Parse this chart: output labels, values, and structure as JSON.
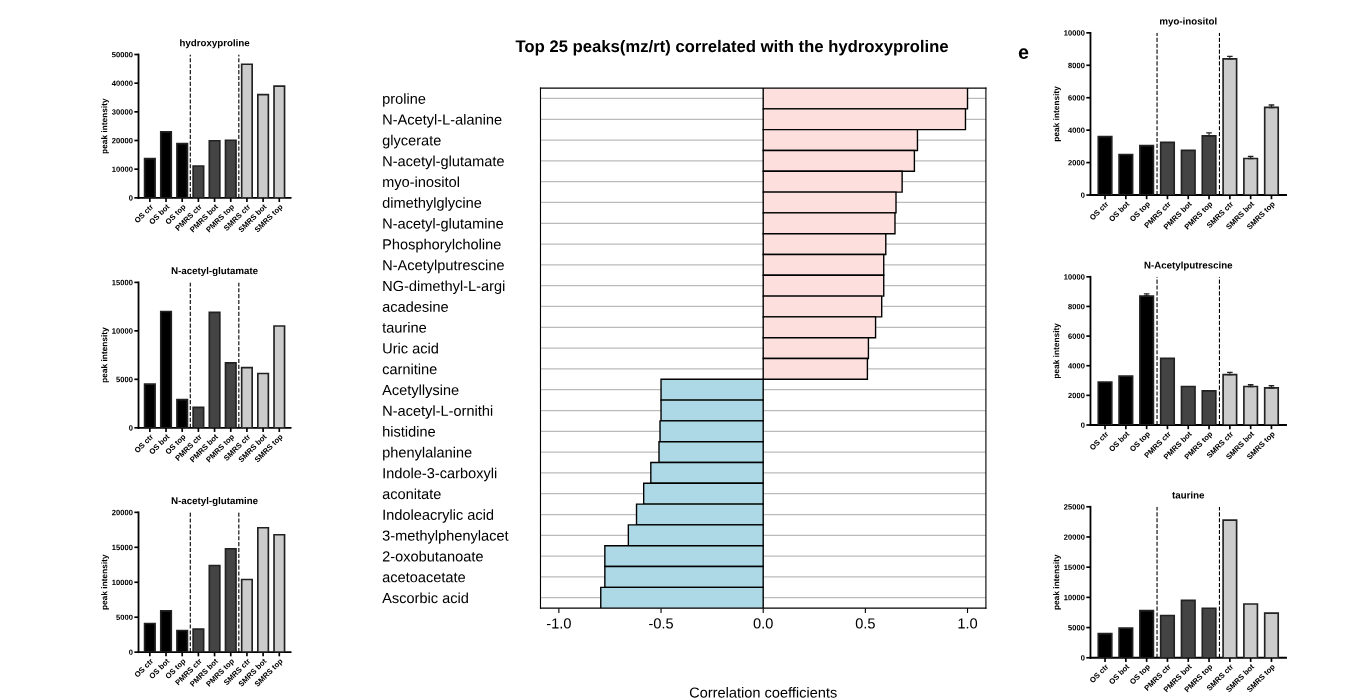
{
  "chart_data": [
    {
      "type": "bar",
      "title": "hydroxyproline",
      "ylabel": "peak intensity",
      "categories": [
        "OS ctr",
        "OS bot",
        "OS top",
        "PMRS ctr",
        "PMRS bot",
        "PMRS top",
        "SMRS ctr",
        "SMRS bot",
        "SMRS top"
      ],
      "values": [
        13700,
        23000,
        18900,
        11100,
        19900,
        20100,
        46600,
        36000,
        39000
      ],
      "colors": [
        "#000000",
        "#000000",
        "#000000",
        "#444444",
        "#444444",
        "#444444",
        "#cccccc",
        "#cccccc",
        "#cccccc"
      ],
      "ylim": [
        0,
        50000
      ],
      "yticks": [
        0,
        10000,
        20000,
        30000,
        40000,
        50000
      ]
    },
    {
      "type": "bar",
      "title": "N-acetyl-glutamate",
      "ylabel": "peak intensity",
      "categories": [
        "OS ctr",
        "OS bot",
        "OS top",
        "PMRS ctr",
        "PMRS bot",
        "PMRS top",
        "SMRS ctr",
        "SMRS bot",
        "SMRS top"
      ],
      "values": [
        4500,
        12000,
        2900,
        2100,
        11900,
        6700,
        6200,
        5600,
        10500
      ],
      "colors": [
        "#000000",
        "#000000",
        "#000000",
        "#444444",
        "#444444",
        "#444444",
        "#cccccc",
        "#cccccc",
        "#cccccc"
      ],
      "ylim": [
        0,
        15000
      ],
      "yticks": [
        0,
        5000,
        10000,
        15000
      ]
    },
    {
      "type": "bar",
      "title": "N-acetyl-glutamine",
      "ylabel": "peak intensity",
      "categories": [
        "OS ctr",
        "OS bot",
        "OS top",
        "PMRS ctr",
        "PMRS bot",
        "PMRS top",
        "SMRS ctr",
        "SMRS bot",
        "SMRS top"
      ],
      "values": [
        4100,
        5900,
        3100,
        3300,
        12400,
        14800,
        10400,
        17800,
        16800
      ],
      "colors": [
        "#000000",
        "#000000",
        "#000000",
        "#444444",
        "#444444",
        "#444444",
        "#cccccc",
        "#cccccc",
        "#cccccc"
      ],
      "ylim": [
        0,
        20000
      ],
      "yticks": [
        0,
        5000,
        10000,
        15000,
        20000
      ]
    },
    {
      "type": "bar",
      "orientation": "horizontal",
      "title": "Top 25 peaks(mz/rt) correlated with the hydroxyproline",
      "xlabel": "Correlation coefficients",
      "categories": [
        "proline",
        "N-Acetyl-L-alanine",
        "glycerate",
        "N-acetyl-glutamate",
        "myo-inositol",
        "dimethylglycine",
        "N-acetyl-glutamine",
        "Phosphorylcholine",
        "N-Acetylputrescine",
        "NG-dimethyl-L-argi",
        "acadesine",
        "taurine",
        "Uric acid",
        "carnitine",
        "Acetyllysine",
        "N-acetyl-L-ornithi",
        "histidine",
        "phenylalanine",
        "Indole-3-carboxyli",
        "aconitate",
        "Indoleacrylic acid",
        "3-methylphenylacet",
        "2-oxobutanoate",
        "acetoacetate",
        "Ascorbic acid"
      ],
      "values": [
        1.0,
        0.99,
        0.755,
        0.74,
        0.68,
        0.65,
        0.645,
        0.6,
        0.59,
        0.59,
        0.58,
        0.55,
        0.515,
        0.51,
        -0.5,
        -0.5,
        -0.505,
        -0.51,
        -0.55,
        -0.585,
        -0.62,
        -0.66,
        -0.775,
        -0.775,
        -0.795
      ],
      "colors": [
        "#fde0dd",
        "#fde0dd",
        "#fde0dd",
        "#fde0dd",
        "#fde0dd",
        "#fde0dd",
        "#fde0dd",
        "#fde0dd",
        "#fde0dd",
        "#fde0dd",
        "#fde0dd",
        "#fde0dd",
        "#fde0dd",
        "#fde0dd",
        "#add8e6",
        "#add8e6",
        "#add8e6",
        "#add8e6",
        "#add8e6",
        "#add8e6",
        "#add8e6",
        "#add8e6",
        "#add8e6",
        "#add8e6",
        "#add8e6"
      ],
      "xlim": [
        -1.09,
        1.09
      ],
      "xticks": [
        {
          "value": -1.0,
          "label": "-1.0"
        },
        {
          "value": -0.5,
          "label": "-0.5"
        },
        {
          "value": 0.0,
          "label": "0.0"
        },
        {
          "value": 0.5,
          "label": "0.5"
        },
        {
          "value": 1.0,
          "label": "1.0"
        }
      ],
      "grid": "y"
    },
    {
      "type": "bar",
      "title": "myo-inositol",
      "ylabel": "peak intensity",
      "annotations": [
        "e"
      ],
      "categories": [
        "OS ctr",
        "OS bot",
        "OS top",
        "PMRS ctr",
        "PMRS bot",
        "PMRS top",
        "SMRS ctr",
        "SMRS bot",
        "SMRS top"
      ],
      "values": [
        3600,
        2500,
        3050,
        3250,
        2750,
        3650,
        8400,
        2250,
        5400
      ],
      "errors": [
        null,
        null,
        null,
        null,
        null,
        180,
        150,
        130,
        150
      ],
      "colors": [
        "#000000",
        "#000000",
        "#000000",
        "#444444",
        "#444444",
        "#444444",
        "#cccccc",
        "#cccccc",
        "#cccccc"
      ],
      "ylim": [
        0,
        10000
      ],
      "yticks": [
        0,
        2000,
        4000,
        6000,
        8000,
        10000
      ]
    },
    {
      "type": "bar",
      "title": "N-Acetylputrescine",
      "ylabel": "peak intensity",
      "categories": [
        "OS ctr",
        "OS bot",
        "OS top",
        "PMRS ctr",
        "PMRS bot",
        "PMRS top",
        "SMRS ctr",
        "SMRS bot",
        "SMRS top"
      ],
      "values": [
        2900,
        3300,
        8700,
        4500,
        2600,
        2300,
        3400,
        2600,
        2500
      ],
      "errors": [
        null,
        null,
        150,
        null,
        null,
        null,
        150,
        120,
        150
      ],
      "colors": [
        "#000000",
        "#000000",
        "#000000",
        "#444444",
        "#444444",
        "#444444",
        "#cccccc",
        "#cccccc",
        "#cccccc"
      ],
      "ylim": [
        0,
        10000
      ],
      "yticks": [
        0,
        2000,
        4000,
        6000,
        8000,
        10000
      ]
    },
    {
      "type": "bar",
      "title": "taurine",
      "ylabel": "peak intensity",
      "categories": [
        "OS ctr",
        "OS bot",
        "OS top",
        "PMRS ctr",
        "PMRS bot",
        "PMRS top",
        "SMRS ctr",
        "SMRS bot",
        "SMRS top"
      ],
      "values": [
        4000,
        4900,
        7800,
        7000,
        9500,
        8200,
        22800,
        8900,
        7400
      ],
      "colors": [
        "#000000",
        "#000000",
        "#000000",
        "#444444",
        "#444444",
        "#444444",
        "#cccccc",
        "#cccccc",
        "#cccccc"
      ],
      "ylim": [
        0,
        25000
      ],
      "yticks": [
        0,
        5000,
        10000,
        15000,
        20000,
        25000
      ]
    }
  ]
}
